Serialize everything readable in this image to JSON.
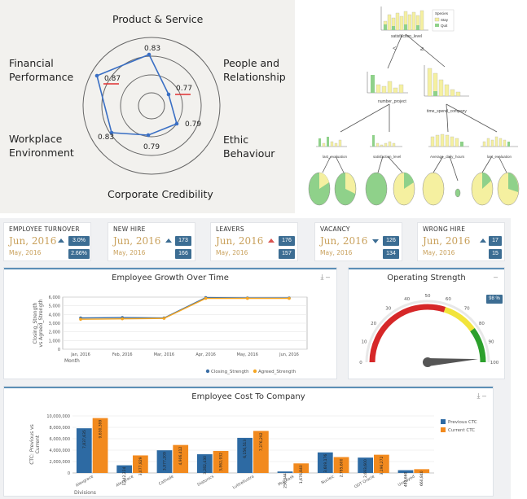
{
  "radar": {
    "labels": {
      "top": "Product & Service",
      "top_left": "Financial\nPerformance",
      "top_right": "People and\nRelationship",
      "bottom_left": "Workplace\nEnvironment",
      "bottom_right": "Ethic Behaviour",
      "bottom": "Corporate Credibility"
    },
    "values": {
      "product_service": "0.83",
      "people_relationship": "0.77",
      "ethic_behaviour": "0.79",
      "corporate_credibility": "0.79",
      "workplace_environment": "0.83",
      "financial_performance": "0.87"
    },
    "line_color": "#3a6fc4",
    "underline_color": "#e03030"
  },
  "tree": {
    "root_split_left": "<",
    "root_split_right": "≥",
    "node_labels": [
      "satisfaction_level",
      "number_project",
      "time_spend_company",
      "last_evaluation",
      "satisfaction_level",
      "Average_daily_hours",
      "last_evaluation"
    ],
    "legend_title": "Species",
    "legend_items": [
      "Stay",
      "Quit"
    ],
    "colors": {
      "stay": "#f5f0a0",
      "quit": "#8fd18a"
    }
  },
  "kpis": [
    {
      "title": "EMPLOYEE TURNOVER",
      "current": "Jun, 2016",
      "previous": "May, 2016",
      "value_current": "3.0%",
      "value_previous": "2.66%",
      "trend": "up"
    },
    {
      "title": "NEW HIRE",
      "current": "Jun, 2016",
      "previous": "May, 2016",
      "value_current": "173",
      "value_previous": "166",
      "trend": "up"
    },
    {
      "title": "LEAVERS",
      "current": "Jun, 2016",
      "previous": "May, 2016",
      "value_current": "176",
      "value_previous": "157",
      "trend": "up-red"
    },
    {
      "title": "VACANCY",
      "current": "Jun, 2016",
      "previous": "May, 2016",
      "value_current": "126",
      "value_previous": "134",
      "trend": "down"
    },
    {
      "title": "WRONG HIRE",
      "current": "Jun, 2016",
      "previous": "May, 2016",
      "value_current": "17",
      "value_previous": "15",
      "trend": "up"
    }
  ],
  "growth": {
    "title": "Employee Growth Over Time",
    "tools": "⤓  –"
  },
  "strength": {
    "title": "Operating Strength",
    "badge": "98 %",
    "tools": "–"
  },
  "cost": {
    "title": "Employee Cost To Company",
    "tools": "⤓  –"
  },
  "chart_data": [
    {
      "type": "line",
      "title": "Employee Growth Over Time",
      "xlabel": "Month",
      "ylabel": "Closing_Strength\nvs Agreed_Strength",
      "categories": [
        "Jan, 2016",
        "Feb, 2016",
        "Mar, 2016",
        "Apr, 2016",
        "May, 2016",
        "Jun, 2016"
      ],
      "yticks": [
        "0",
        "1,000",
        "2,000",
        "3,000",
        "4,000",
        "5,000",
        "6,000"
      ],
      "ylim": [
        0,
        6000
      ],
      "series": [
        {
          "name": "Closing_Strength",
          "values": [
            3600,
            3650,
            3600,
            5950,
            5900,
            5900
          ],
          "color": "#3b6ea5"
        },
        {
          "name": "Agreed_Strength",
          "values": [
            3450,
            3500,
            3550,
            5850,
            5850,
            5850
          ],
          "color": "#f5a623"
        }
      ],
      "legend": "bottom-right",
      "grid": true
    },
    {
      "type": "gauge",
      "title": "Operating Strength",
      "value": 98,
      "ticks": [
        "0",
        "10",
        "20",
        "30",
        "40",
        "50",
        "60",
        "70",
        "80",
        "90",
        "100"
      ],
      "bands": [
        {
          "from": 0,
          "to": 60,
          "color": "#d62728"
        },
        {
          "from": 60,
          "to": 80,
          "color": "#f2e43a"
        },
        {
          "from": 80,
          "to": 100,
          "color": "#2ca02c"
        }
      ]
    },
    {
      "type": "bar",
      "title": "Employee Cost To Company",
      "xlabel": "Divisions",
      "ylabel": "CTC: Previous vs\nCurrent",
      "categories": [
        "Alexgrace",
        "Alexgrace",
        "Cathode",
        "Diatonics",
        "Luttrellustra",
        "Multitask",
        "Nucleic",
        "ODT Oracle",
        "Unplayed"
      ],
      "yticks": [
        "0",
        "2,000,000",
        "4,000,000",
        "6,000,000",
        "8,000,000",
        "10,000,000"
      ],
      "ylim": [
        0,
        10000000
      ],
      "series": [
        {
          "name": "Previous CTC",
          "values": [
            7837635,
            1342224,
            3977209,
            3282430,
            6156513,
            256344,
            3609176,
            2693600,
            483660
          ],
          "labels": [
            "7,837,635",
            "1,342,224",
            "3,977,209",
            "3,282,430",
            "6,156,513",
            "256,344",
            "3,609,176",
            "2,693,600",
            "483,660"
          ],
          "color": "#2d6aa3"
        },
        {
          "name": "Current CTC",
          "values": [
            9630399,
            3077829,
            4906412,
            3862932,
            7376292,
            1676840,
            2785600,
            3196272,
            660840
          ],
          "labels": [
            "9,630,399",
            "3,077,829",
            "4,906,412",
            "3,862,932",
            "7,376,292",
            "1,676,840",
            "2,785,600",
            "3,196,272",
            "660,840"
          ],
          "color": "#f28a1e"
        }
      ],
      "legend": "right",
      "grid": true
    }
  ]
}
